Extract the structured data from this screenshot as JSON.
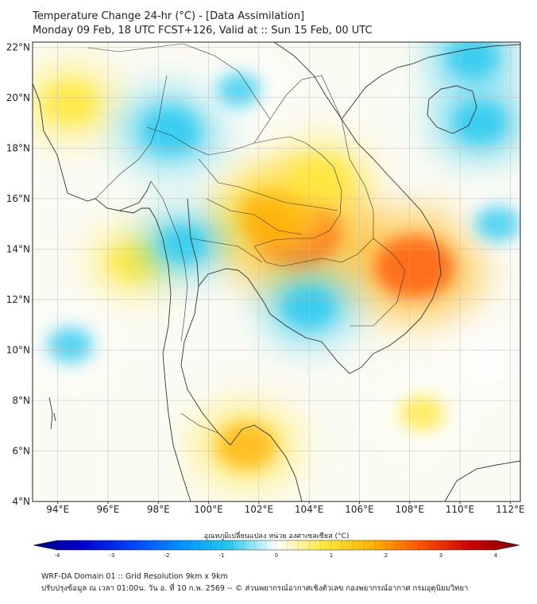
{
  "header": {
    "title_line1": "Temperature Change 24-hr (°C) - [Data Assimilation]",
    "title_line2": "Monday 09 Feb, 18 UTC FCST+126, Valid at :: Sun 15 Feb, 00 UTC"
  },
  "map": {
    "lon_labels": [
      "94°E",
      "96°E",
      "98°E",
      "100°E",
      "102°E",
      "104°E",
      "106°E",
      "108°E",
      "110°E",
      "112°E"
    ],
    "lat_labels": [
      "22°N",
      "20°N",
      "18°N",
      "16°N",
      "14°N",
      "12°N",
      "10°N",
      "8°N",
      "6°N",
      "4°N"
    ],
    "lon_values": [
      94,
      96,
      98,
      100,
      102,
      104,
      106,
      108,
      110,
      112
    ],
    "lat_values": [
      22,
      20,
      18,
      16,
      14,
      12,
      10,
      8,
      6,
      4
    ],
    "extent": {
      "lon_min": 93,
      "lon_max": 112.4,
      "lat_min": 4,
      "lat_max": 22.2
    },
    "anomalies": [
      {
        "name": "warm-core-northeast-thailand",
        "lon": 103.5,
        "lat": 14.7,
        "value": 2.4
      },
      {
        "name": "warm-east-cambodia-vietnam",
        "lon": 108.2,
        "lat": 13.3,
        "value": 2.0
      },
      {
        "name": "warm-central-thailand",
        "lon": 102.5,
        "lat": 15.3,
        "value": 1.4
      },
      {
        "name": "warm-laos",
        "lon": 104.5,
        "lat": 16.8,
        "value": 1.0
      },
      {
        "name": "warm-gulf-south",
        "lon": 101.5,
        "lat": 6.2,
        "value": 1.2
      },
      {
        "name": "warm-myanmar-north",
        "lon": 94.5,
        "lat": 19.8,
        "value": 0.9
      },
      {
        "name": "warm-andaman",
        "lon": 97.0,
        "lat": 13.5,
        "value": 0.7
      },
      {
        "name": "warm-south-china-sea",
        "lon": 108.5,
        "lat": 7.5,
        "value": 0.6
      },
      {
        "name": "cool-north-thailand",
        "lon": 98.5,
        "lat": 18.7,
        "value": -1.1
      },
      {
        "name": "cool-gulf-cambodia",
        "lon": 104.0,
        "lat": 11.7,
        "value": -0.9
      },
      {
        "name": "cool-hainan",
        "lon": 110.8,
        "lat": 19.0,
        "value": -0.9
      },
      {
        "name": "cool-south-china-coast",
        "lon": 110.5,
        "lat": 21.6,
        "value": -0.8
      },
      {
        "name": "cool-western-thailand",
        "lon": 99.0,
        "lat": 14.2,
        "value": -0.7
      },
      {
        "name": "cool-bay-west",
        "lon": 94.5,
        "lat": 10.2,
        "value": -0.6
      },
      {
        "name": "cool-sea-east",
        "lon": 111.5,
        "lat": 15.0,
        "value": -0.6
      },
      {
        "name": "cool-north-central",
        "lon": 101.2,
        "lat": 20.3,
        "value": -0.5
      },
      {
        "name": "cool-sea-southeast",
        "lon": 111.0,
        "lat": 9.5,
        "value": -0.4
      }
    ]
  },
  "colorbar": {
    "title": "อุณหภูมิเปลี่ยนแปลง หน่วย องศาเซลเซียส (°C)",
    "tick_labels": [
      "-4",
      "-3",
      "-2",
      "-1",
      "0",
      "1",
      "2",
      "3",
      "4"
    ],
    "tick_values": [
      -4,
      -3,
      -2,
      -1,
      0,
      1,
      2,
      3,
      4
    ],
    "range": [
      -4,
      4
    ],
    "colors": [
      "#00007f",
      "#0000d0",
      "#0040ff",
      "#0090ff",
      "#20c8f0",
      "#ffffff",
      "#ffe838",
      "#ffb000",
      "#ff5000",
      "#d00000",
      "#7f0000"
    ]
  },
  "footer": {
    "line1": "WRF-DA Domain 01 :: Grid Resolution 9km x 9km",
    "line2": "ปรับปรุงข้อมูล ณ เวลา 01:00น. วัน อ. ที่ 10 ก.พ. 2569 -- © ส่วนพยากรณ์อากาศเชิงตัวเลข กองพยากรณ์อากาศ กรมอุตุนิยมวิทยา"
  }
}
